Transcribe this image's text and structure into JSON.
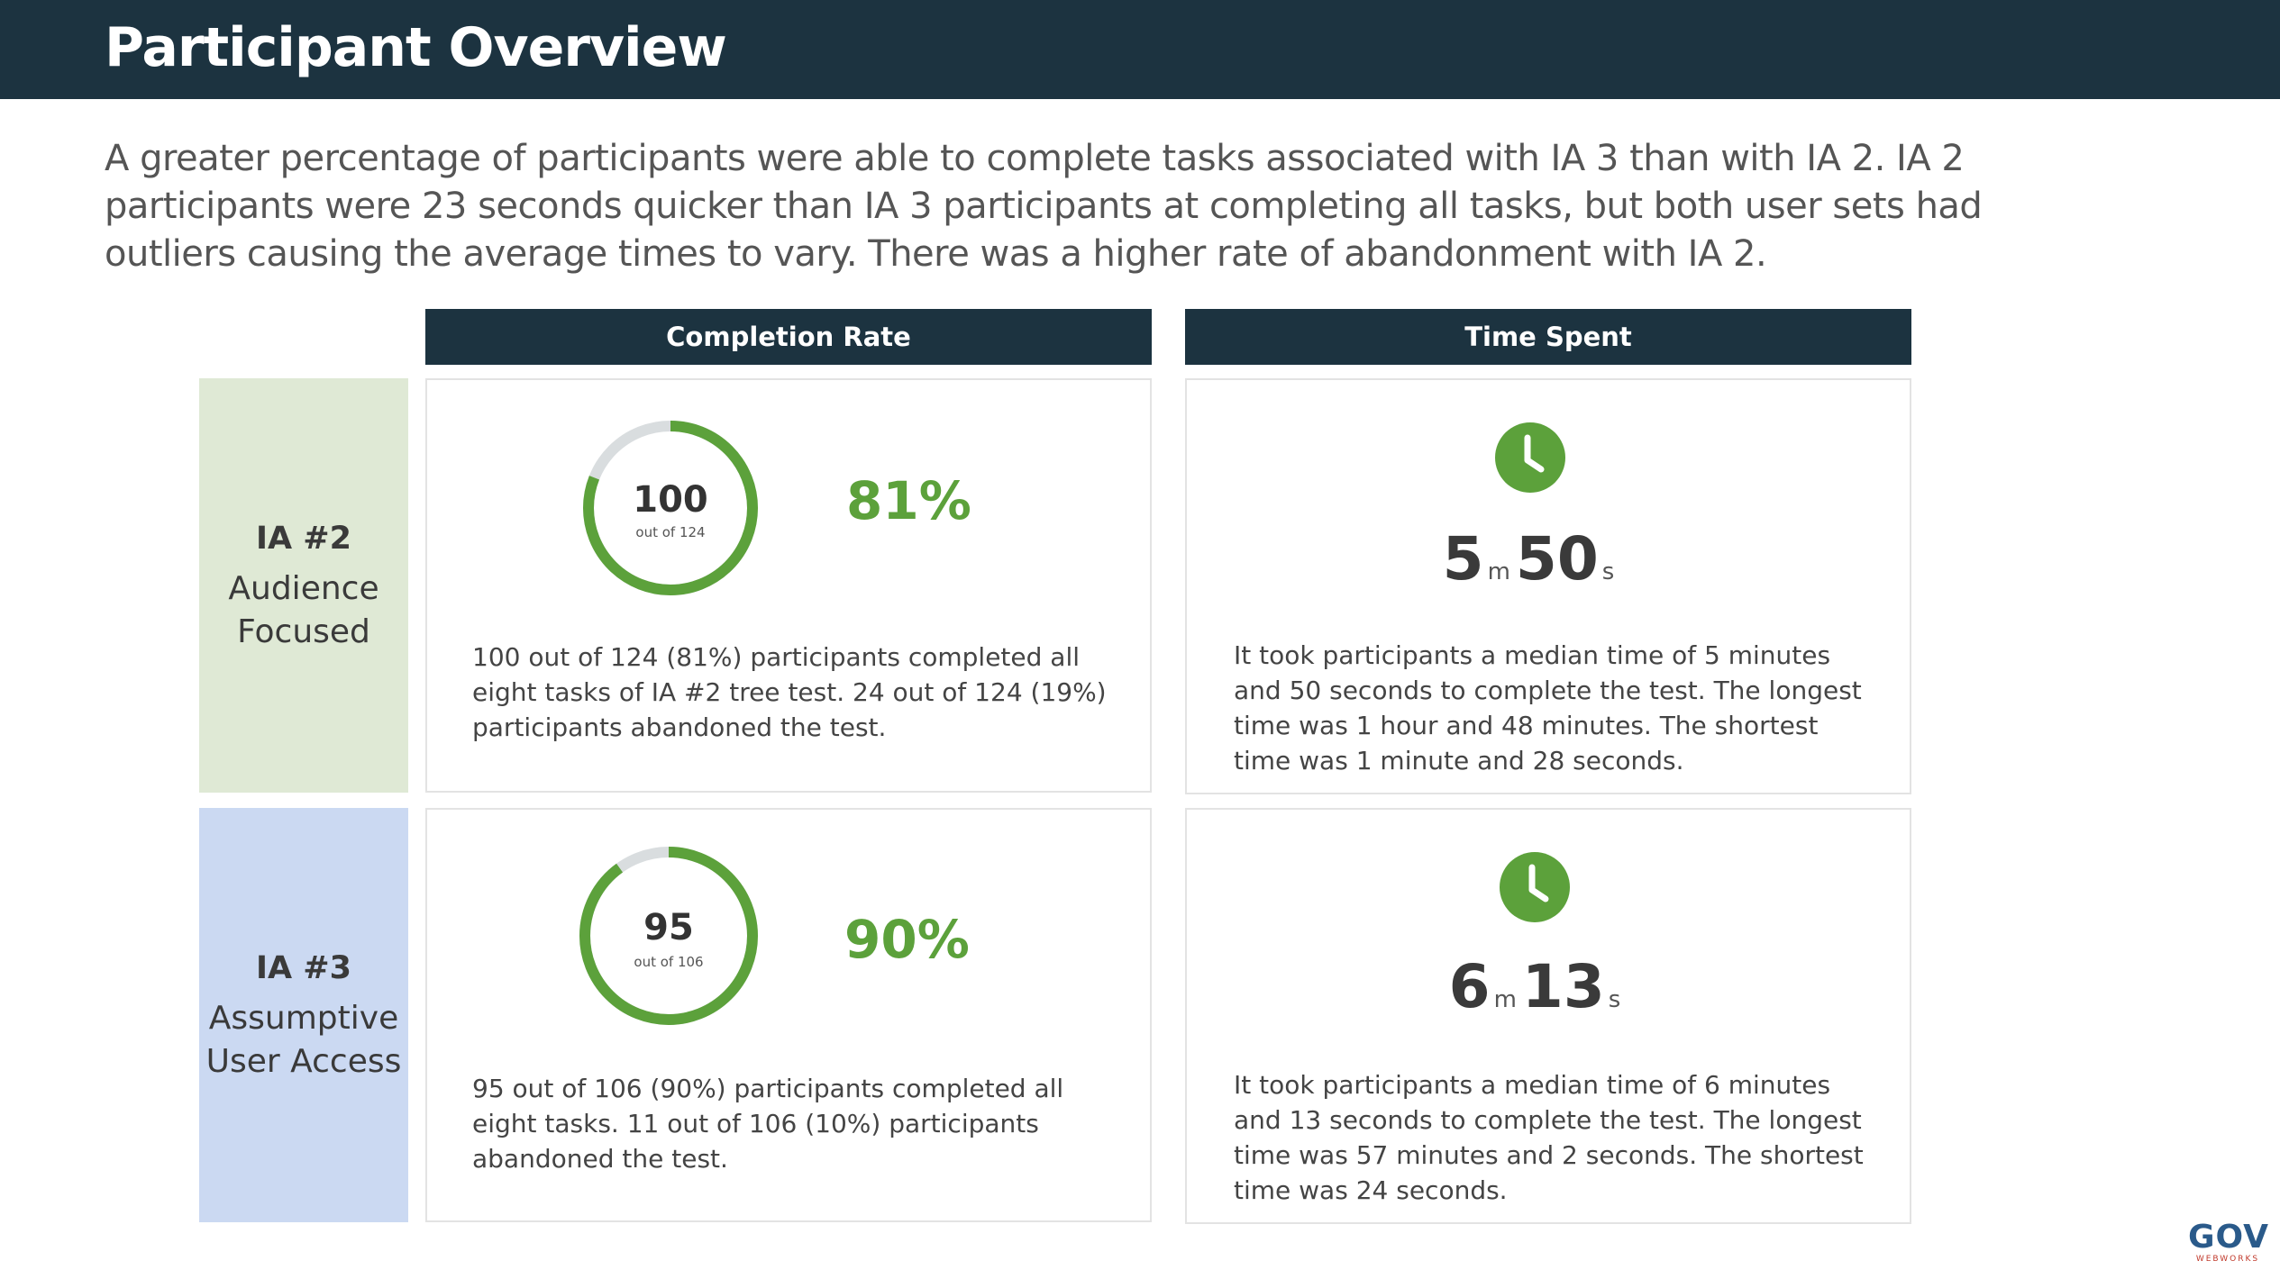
{
  "header": {
    "title": "Participant Overview"
  },
  "intro": "A greater percentage of participants were able to complete tasks associated with IA 3 than with IA 2. IA 2 participants were 23 seconds quicker than IA 3 participants at completing all tasks, but both user sets had outliers causing the average times to vary. There was a higher rate of abandonment with IA 2.",
  "columns": {
    "completion": "Completion Rate",
    "time": "Time Spent"
  },
  "rows": [
    {
      "id": "IA #2",
      "name": "Audience Focused",
      "ring_value": "100",
      "ring_sub": "out of 124",
      "ring_fraction": 0.81,
      "percent": "81%",
      "completion_desc": "100 out of 124 (81%) participants completed all eight tasks of IA #2 tree test. 24 out of 124 (19%) participants abandoned the test.",
      "minutes": "5",
      "minutes_unit": "m",
      "seconds": "50",
      "seconds_unit": "s",
      "time_desc": "It took participants a median time of 5 minutes and 50 seconds to complete the test. The longest time was 1 hour and 48 minutes. The shortest time was 1 minute and 28 seconds.",
      "label_bg": "#dfe9d5"
    },
    {
      "id": "IA #3",
      "name": "Assumptive User Access",
      "ring_value": "95",
      "ring_sub": "out of 106",
      "ring_fraction": 0.9,
      "percent": "90%",
      "completion_desc": "95 out of 106 (90%) participants completed all eight tasks. 11 out of 106 (10%) participants abandoned the test.",
      "minutes": "6",
      "minutes_unit": "m",
      "seconds": "13",
      "seconds_unit": "s",
      "time_desc": "It took participants a median time of 6 minutes and 13 seconds to complete the test. The longest time was 57 minutes and 2 seconds. The shortest time was 24 seconds.",
      "label_bg": "#cbd9f2"
    }
  ],
  "colors": {
    "accent_green": "#5ca13b",
    "ring_track": "#d9dddf",
    "header_bg": "#1c3340"
  },
  "logo": {
    "main": "GOV",
    "sub": "WEBWORKS"
  },
  "icons": {
    "time": "clock-icon"
  }
}
